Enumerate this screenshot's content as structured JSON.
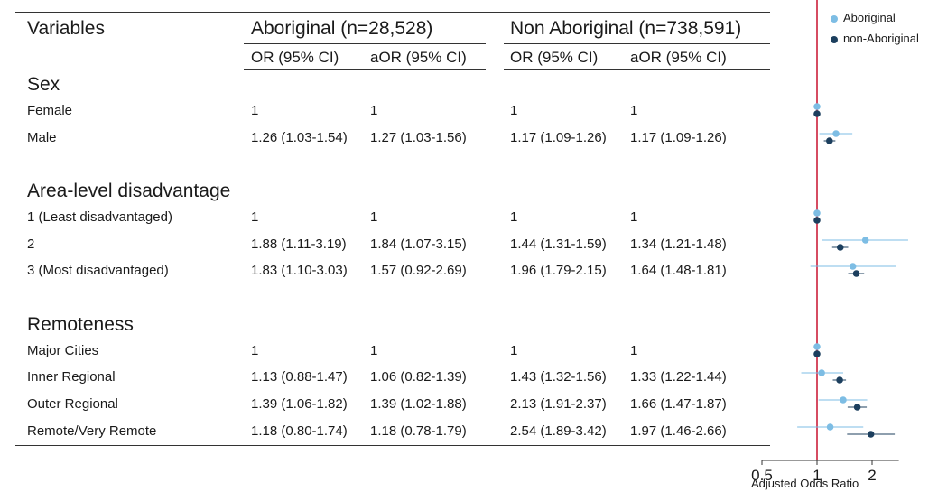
{
  "table": {
    "header": {
      "variables": "Variables",
      "group1": "Aboriginal (n=28,528)",
      "group2": "Non Aboriginal (n=738,591)",
      "or_label": "OR (95% CI)",
      "aor_label": "aOR (95% CI)"
    },
    "sections": [
      {
        "title": "Sex",
        "rows": [
          {
            "label": "Female",
            "ab_or": "1",
            "ab_aor": "1",
            "non_or": "1",
            "non_aor": "1"
          },
          {
            "label": "Male",
            "ab_or": "1.26 (1.03-1.54)",
            "ab_aor": "1.27 (1.03-1.56)",
            "non_or": "1.17 (1.09-1.26)",
            "non_aor": "1.17 (1.09-1.26)"
          }
        ]
      },
      {
        "title": "Area-level disadvantage",
        "rows": [
          {
            "label": "1 (Least disadvantaged)",
            "ab_or": "1",
            "ab_aor": "1",
            "non_or": "1",
            "non_aor": "1"
          },
          {
            "label": "2",
            "ab_or": "1.88 (1.11-3.19)",
            "ab_aor": "1.84 (1.07-3.15)",
            "non_or": "1.44 (1.31-1.59)",
            "non_aor": "1.34 (1.21-1.48)"
          },
          {
            "label": "3 (Most disadvantaged)",
            "ab_or": "1.83 (1.10-3.03)",
            "ab_aor": "1.57 (0.92-2.69)",
            "non_or": "1.96 (1.79-2.15)",
            "non_aor": "1.64 (1.48-1.81)"
          }
        ]
      },
      {
        "title": "Remoteness",
        "rows": [
          {
            "label": "Major Cities",
            "ab_or": "1",
            "ab_aor": "1",
            "non_or": "1",
            "non_aor": "1"
          },
          {
            "label": "Inner Regional",
            "ab_or": "1.13 (0.88-1.47)",
            "ab_aor": "1.06 (0.82-1.39)",
            "non_or": "1.43 (1.32-1.56)",
            "non_aor": "1.33 (1.22-1.44)"
          },
          {
            "label": "Outer Regional",
            "ab_or": "1.39 (1.06-1.82)",
            "ab_aor": "1.39 (1.02-1.88)",
            "non_or": "2.13 (1.91-2.37)",
            "non_aor": "1.66 (1.47-1.87)"
          },
          {
            "label": "Remote/Very Remote",
            "ab_or": "1.18 (0.80-1.74)",
            "ab_aor": "1.18 (0.78-1.79)",
            "non_or": "2.54 (1.89-3.42)",
            "non_aor": "1.97 (1.46-2.66)"
          }
        ]
      }
    ]
  },
  "chart_data": {
    "type": "scatter",
    "xlabel": "Adjusted Odds Ratio",
    "x_scale": "log",
    "xlim": [
      0.5,
      2.8
    ],
    "x_ticks": [
      0.5,
      1,
      2
    ],
    "x_tick_labels": [
      "0.5",
      "1",
      "2"
    ],
    "reference_line": 1,
    "reference_color": "#c8102e",
    "legend_position": "top-right",
    "categories": [
      "Female",
      "Male",
      "1 (Least disadvantaged)",
      "2",
      "3 (Most disadvantaged)",
      "Major Cities",
      "Inner Regional",
      "Outer Regional",
      "Remote/Very Remote"
    ],
    "series": [
      {
        "name": "Aboriginal",
        "color": "#7dbde4",
        "points": [
          {
            "row": "Female",
            "est": 1,
            "lo": 1,
            "hi": 1
          },
          {
            "row": "Male",
            "est": 1.27,
            "lo": 1.03,
            "hi": 1.56
          },
          {
            "row": "1 (Least disadvantaged)",
            "est": 1,
            "lo": 1,
            "hi": 1
          },
          {
            "row": "2",
            "est": 1.84,
            "lo": 1.07,
            "hi": 3.15
          },
          {
            "row": "3 (Most disadvantaged)",
            "est": 1.57,
            "lo": 0.92,
            "hi": 2.69
          },
          {
            "row": "Major Cities",
            "est": 1,
            "lo": 1,
            "hi": 1
          },
          {
            "row": "Inner Regional",
            "est": 1.06,
            "lo": 0.82,
            "hi": 1.39
          },
          {
            "row": "Outer Regional",
            "est": 1.39,
            "lo": 1.02,
            "hi": 1.88
          },
          {
            "row": "Remote/Very Remote",
            "est": 1.18,
            "lo": 0.78,
            "hi": 1.79
          }
        ]
      },
      {
        "name": "non-Aboriginal",
        "color": "#1c3f5e",
        "points": [
          {
            "row": "Female",
            "est": 1,
            "lo": 1,
            "hi": 1
          },
          {
            "row": "Male",
            "est": 1.17,
            "lo": 1.09,
            "hi": 1.26
          },
          {
            "row": "1 (Least disadvantaged)",
            "est": 1,
            "lo": 1,
            "hi": 1
          },
          {
            "row": "2",
            "est": 1.34,
            "lo": 1.21,
            "hi": 1.48
          },
          {
            "row": "3 (Most disadvantaged)",
            "est": 1.64,
            "lo": 1.48,
            "hi": 1.81
          },
          {
            "row": "Major Cities",
            "est": 1,
            "lo": 1,
            "hi": 1
          },
          {
            "row": "Inner Regional",
            "est": 1.33,
            "lo": 1.22,
            "hi": 1.44
          },
          {
            "row": "Outer Regional",
            "est": 1.66,
            "lo": 1.47,
            "hi": 1.87
          },
          {
            "row": "Remote/Very Remote",
            "est": 1.97,
            "lo": 1.46,
            "hi": 2.66
          }
        ]
      }
    ]
  }
}
